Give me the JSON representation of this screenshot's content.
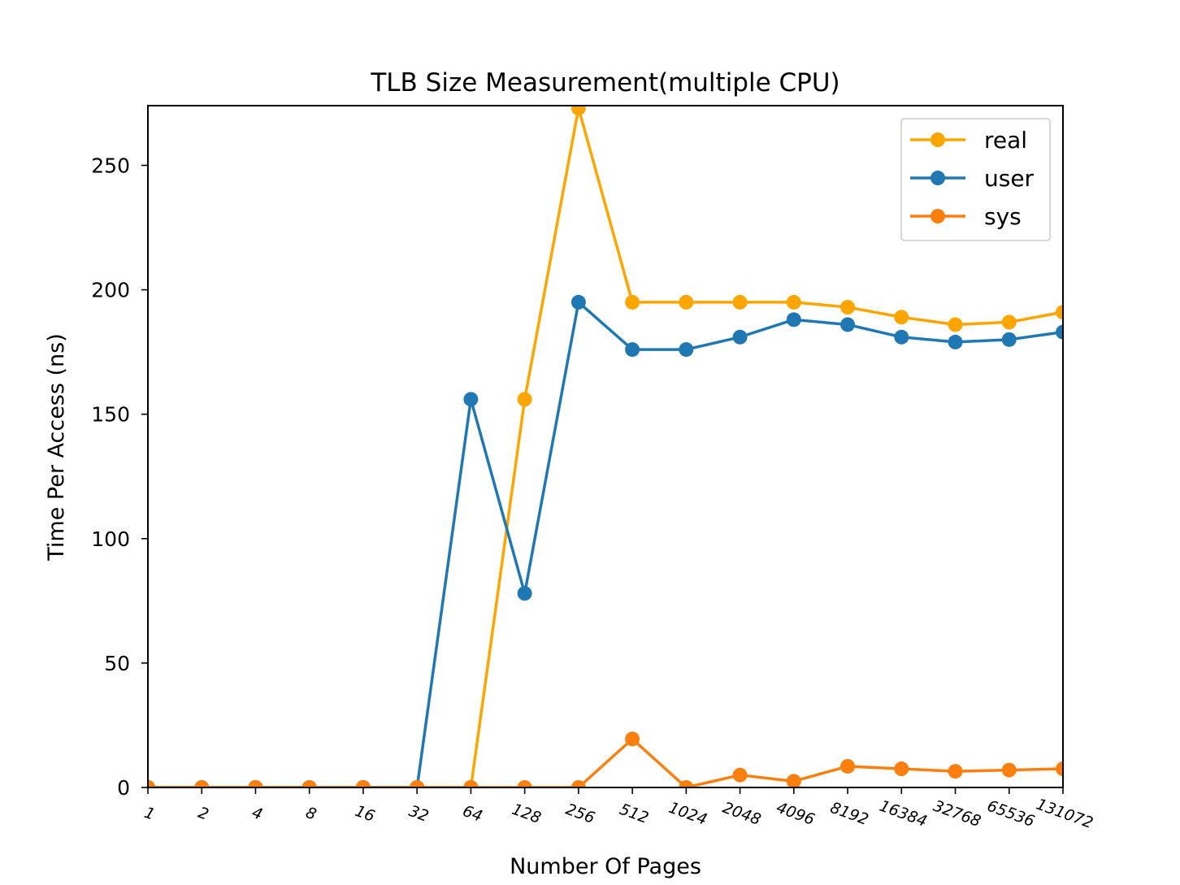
{
  "chart_data": {
    "type": "line",
    "title": "TLB Size Measurement(multiple CPU)",
    "xlabel": "Number Of Pages",
    "ylabel": "Time Per Access (ns)",
    "categories": [
      "1",
      "2",
      "4",
      "8",
      "16",
      "32",
      "64",
      "128",
      "256",
      "512",
      "1024",
      "2048",
      "4096",
      "8192",
      "16384",
      "32768",
      "65536",
      "131072"
    ],
    "ylim": [
      0,
      274
    ],
    "yticks": [
      "0",
      "50",
      "100",
      "150",
      "200",
      "250"
    ],
    "grid": false,
    "legend_position": "upper right",
    "series": [
      {
        "name": "real",
        "color": "#ffa500",
        "values": [
          0,
          0,
          0,
          0,
          0,
          0,
          0,
          156,
          273,
          195,
          195,
          195,
          195,
          193,
          189,
          186,
          187,
          191
        ]
      },
      {
        "name": "user",
        "color": "#1f77b4",
        "values": [
          0,
          0,
          0,
          0,
          0,
          0,
          156,
          78,
          195,
          176,
          176,
          181,
          188,
          186,
          181,
          179,
          180,
          183
        ]
      },
      {
        "name": "sys",
        "color": "#ff7f0e",
        "values": [
          0,
          0,
          0,
          0,
          0,
          0,
          0,
          0,
          0,
          19.5,
          0,
          5,
          2.5,
          8.5,
          7.5,
          6.5,
          7,
          7.5
        ]
      }
    ]
  }
}
